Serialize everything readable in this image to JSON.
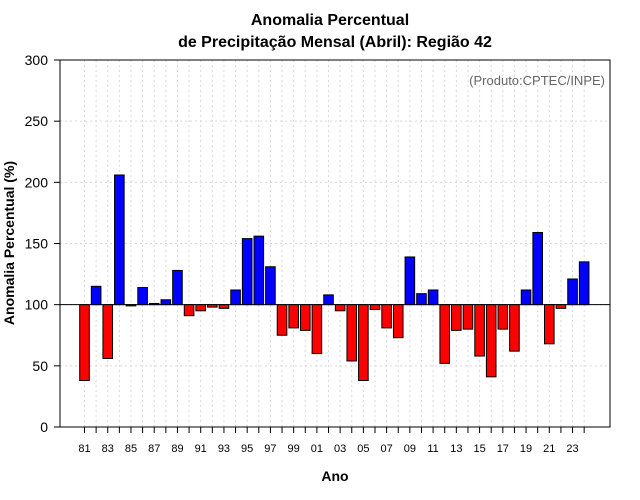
{
  "chart_data": {
    "type": "bar",
    "title": "Anomalia Percentual",
    "subtitle": "de Precipitação Mensal (Abril): Região 42",
    "xlabel": "Ano",
    "ylabel": "Anomalia Percentual (%)",
    "annotation": "(Produto:CPTEC/INPE)",
    "ylim": [
      0,
      300
    ],
    "yticks": [
      0,
      50,
      100,
      150,
      200,
      250,
      300
    ],
    "baseline": 100,
    "grid": true,
    "colors": {
      "above": "#0000ff",
      "below": "#ff0000",
      "edge": "#000000",
      "grid": "#d9d9d9"
    },
    "categories": [
      "81",
      "82",
      "83",
      "84",
      "85",
      "86",
      "87",
      "88",
      "89",
      "90",
      "91",
      "92",
      "93",
      "94",
      "95",
      "96",
      "97",
      "98",
      "99",
      "00",
      "01",
      "02",
      "03",
      "04",
      "05",
      "06",
      "07",
      "08",
      "09",
      "10",
      "11",
      "12",
      "13",
      "14",
      "15",
      "16",
      "17",
      "18",
      "19",
      "20",
      "21",
      "22",
      "23",
      "24"
    ],
    "xtick_labels": [
      "81",
      "83",
      "85",
      "87",
      "89",
      "91",
      "93",
      "95",
      "97",
      "99",
      "01",
      "03",
      "05",
      "07",
      "09",
      "11",
      "13",
      "15",
      "17",
      "19",
      "21",
      "23"
    ],
    "values": [
      38,
      115,
      56,
      206,
      99,
      114,
      101,
      104,
      128,
      91,
      95,
      98,
      97,
      112,
      154,
      156,
      131,
      75,
      81,
      79,
      60,
      108,
      95,
      54,
      38,
      96,
      81,
      73,
      139,
      109,
      112,
      52,
      79,
      80,
      58,
      41,
      80,
      62,
      112,
      159,
      68,
      97,
      121,
      135
    ]
  }
}
